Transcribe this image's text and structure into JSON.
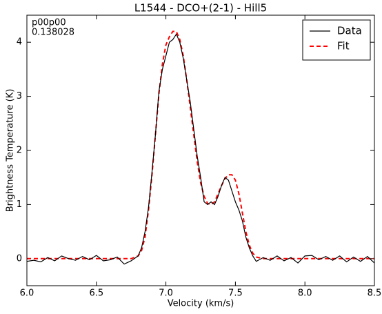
{
  "chart_data": {
    "type": "line",
    "title": "L1544 - DCO+(2-1) - Hill5",
    "x_label": "Velocity (km/s)",
    "y_label": "Brightness Temperature (K)",
    "annotations": [
      "p00p00",
      "0.138028"
    ],
    "x": [
      6.0,
      6.05,
      6.1,
      6.15,
      6.2,
      6.25,
      6.3,
      6.35,
      6.4,
      6.45,
      6.5,
      6.55,
      6.6,
      6.65,
      6.7,
      6.75,
      6.8,
      6.825,
      6.85,
      6.875,
      6.9,
      6.925,
      6.95,
      6.975,
      7.0,
      7.025,
      7.05,
      7.075,
      7.1,
      7.125,
      7.15,
      7.175,
      7.2,
      7.225,
      7.25,
      7.275,
      7.3,
      7.325,
      7.35,
      7.375,
      7.4,
      7.425,
      7.45,
      7.475,
      7.5,
      7.525,
      7.55,
      7.575,
      7.6,
      7.625,
      7.65,
      7.7,
      7.75,
      7.8,
      7.85,
      7.9,
      7.95,
      8.0,
      8.05,
      8.1,
      8.15,
      8.2,
      8.25,
      8.3,
      8.35,
      8.4,
      8.45,
      8.5
    ],
    "series": [
      {
        "name": "Data",
        "color": "#000000",
        "linestyle": "solid",
        "values": [
          -0.05,
          -0.03,
          -0.06,
          0.02,
          -0.04,
          0.05,
          0.0,
          -0.03,
          0.04,
          -0.02,
          0.06,
          -0.04,
          -0.02,
          0.03,
          -0.1,
          -0.04,
          0.05,
          0.2,
          0.5,
          0.95,
          1.6,
          2.3,
          3.1,
          3.5,
          3.75,
          4.0,
          4.05,
          4.15,
          4.0,
          3.7,
          3.3,
          2.9,
          2.4,
          1.9,
          1.5,
          1.05,
          1.0,
          1.05,
          1.0,
          1.15,
          1.35,
          1.5,
          1.45,
          1.25,
          1.05,
          0.9,
          0.7,
          0.4,
          0.2,
          0.05,
          -0.05,
          0.02,
          -0.03,
          0.05,
          -0.04,
          0.02,
          -0.08,
          0.05,
          0.06,
          -0.02,
          0.04,
          -0.03,
          0.05,
          -0.06,
          0.03,
          -0.05,
          0.04,
          -0.08
        ]
      },
      {
        "name": "Fit",
        "color": "#ff0000",
        "linestyle": "dashed",
        "values": [
          0,
          0,
          0,
          0,
          0,
          0,
          0,
          0,
          0,
          0,
          0,
          0,
          0,
          0,
          0,
          0,
          0.05,
          0.15,
          0.4,
          0.9,
          1.55,
          2.3,
          3.05,
          3.6,
          3.95,
          4.1,
          4.2,
          4.2,
          4.05,
          3.75,
          3.3,
          2.8,
          2.3,
          1.8,
          1.4,
          1.15,
          1.02,
          1.0,
          1.05,
          1.2,
          1.35,
          1.48,
          1.55,
          1.55,
          1.45,
          1.2,
          0.85,
          0.5,
          0.25,
          0.1,
          0.03,
          0,
          0,
          0,
          0,
          0,
          0,
          0,
          0,
          0,
          0,
          0,
          0,
          0,
          0,
          0,
          0,
          0
        ]
      }
    ],
    "xlim": [
      6.0,
      8.5
    ],
    "xticks": [
      {
        "value": 6.0,
        "label": "6.0"
      },
      {
        "value": 6.5,
        "label": "6.5"
      },
      {
        "value": 7.0,
        "label": "7.0"
      },
      {
        "value": 7.5,
        "label": "7.5"
      },
      {
        "value": 8.0,
        "label": "8.0"
      },
      {
        "value": 8.5,
        "label": "8.5"
      }
    ],
    "ylim": [
      -0.5,
      4.5
    ],
    "yticks": [
      0,
      1,
      2,
      3,
      4
    ],
    "legend": "upper right"
  }
}
